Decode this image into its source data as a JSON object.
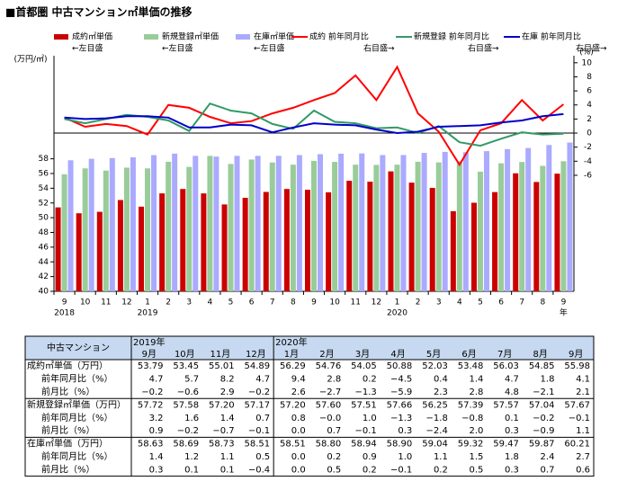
{
  "chart_data": {
    "type": "combo",
    "title": "■首都圏 中古マンション㎡単価の推移",
    "y_label": "(万円/㎡)",
    "y2_label": "(%)",
    "categories": [
      "9",
      "10",
      "11",
      "12",
      "1",
      "2",
      "3",
      "4",
      "5",
      "6",
      "7",
      "8",
      "9",
      "10",
      "11",
      "12",
      "1",
      "2",
      "3",
      "4",
      "5",
      "6",
      "7",
      "8",
      "9"
    ],
    "category_years": [
      "2018",
      null,
      null,
      null,
      "2019",
      null,
      null,
      null,
      null,
      null,
      null,
      null,
      null,
      null,
      null,
      null,
      "2020",
      null,
      null,
      null,
      null,
      null,
      null,
      null,
      null
    ],
    "x_unit": "年",
    "ylim": [
      40,
      72
    ],
    "yticks": [
      40,
      42,
      44,
      46,
      48,
      50,
      52,
      54,
      56,
      58
    ],
    "y2lim": [
      -22.5,
      11
    ],
    "y2ticks": [
      -6,
      -4,
      -2,
      0,
      2,
      4,
      6,
      8,
      10
    ],
    "y2_zero_line": true,
    "series": [
      {
        "name": "成約㎡単価",
        "note": "←左目盛",
        "type": "bar",
        "color": "#cc0000",
        "values": [
          51.4,
          50.6,
          50.8,
          52.4,
          51.5,
          53.3,
          53.9,
          53.3,
          51.8,
          52.7,
          53.5,
          53.9,
          53.79,
          53.45,
          55.01,
          54.89,
          56.29,
          54.76,
          54.05,
          50.88,
          52.03,
          53.48,
          56.03,
          54.85,
          55.98
        ]
      },
      {
        "name": "新規登録㎡単価",
        "note": "←左目盛",
        "type": "bar",
        "color": "#99cc99",
        "values": [
          55.9,
          56.7,
          56.4,
          56.8,
          56.7,
          57.6,
          56.9,
          58.4,
          57.3,
          57.9,
          57.5,
          57.2,
          57.72,
          57.58,
          57.2,
          57.17,
          57.2,
          57.6,
          57.51,
          57.66,
          56.25,
          57.39,
          57.57,
          57.04,
          57.67
        ]
      },
      {
        "name": "在庫㎡単価",
        "note": "←左目盛",
        "type": "bar",
        "color": "#aaaaff",
        "values": [
          57.8,
          58.0,
          58.1,
          58.2,
          58.5,
          58.7,
          58.4,
          58.3,
          58.4,
          58.4,
          58.4,
          58.5,
          58.63,
          58.69,
          58.73,
          58.51,
          58.51,
          58.8,
          58.94,
          58.9,
          59.04,
          59.32,
          59.47,
          59.87,
          60.21
        ]
      },
      {
        "name": "成約 前年同月比",
        "note": "右目盛→",
        "type": "line",
        "axis": "y2",
        "color": "#ff0000",
        "values": [
          2.2,
          0.9,
          1.3,
          1.0,
          -0.2,
          4.0,
          3.6,
          2.3,
          1.4,
          1.7,
          2.8,
          3.6,
          4.7,
          5.7,
          8.2,
          4.7,
          9.4,
          2.8,
          0.2,
          -4.5,
          0.4,
          1.4,
          4.7,
          1.8,
          4.1
        ]
      },
      {
        "name": "新規登録 前年同月比",
        "note": "右目盛→",
        "type": "line",
        "axis": "y2",
        "color": "#339966",
        "values": [
          2.0,
          1.4,
          2.0,
          2.6,
          2.3,
          1.8,
          0.3,
          4.2,
          3.2,
          2.8,
          1.3,
          0.6,
          3.2,
          1.6,
          1.4,
          0.7,
          0.8,
          0.0,
          1.0,
          -1.3,
          -1.8,
          -0.8,
          0.1,
          -0.2,
          -0.1
        ]
      },
      {
        "name": "在庫 前年同月比",
        "note": "右目盛→",
        "type": "line",
        "axis": "y2",
        "color": "#0000cc",
        "values": [
          2.2,
          2.0,
          2.1,
          2.4,
          2.4,
          2.2,
          0.8,
          0.8,
          1.2,
          1.1,
          0.1,
          0.8,
          1.4,
          1.2,
          1.1,
          0.5,
          0.0,
          0.2,
          0.9,
          1.0,
          1.1,
          1.5,
          1.8,
          2.4,
          2.7
        ]
      }
    ]
  },
  "table": {
    "corner": "中古マンション",
    "years": [
      {
        "label": "2019年",
        "span": 4
      },
      {
        "label": "2020年",
        "span": 9
      }
    ],
    "months": [
      "9月",
      "10月",
      "11月",
      "12月",
      "1月",
      "2月",
      "3月",
      "4月",
      "5月",
      "6月",
      "7月",
      "8月",
      "9月"
    ],
    "rows": [
      {
        "label": "成約㎡単価（万円）",
        "cells": [
          "53.79",
          "53.45",
          "55.01",
          "54.89",
          "56.29",
          "54.76",
          "54.05",
          "50.88",
          "52.03",
          "53.48",
          "56.03",
          "54.85",
          "55.98"
        ]
      },
      {
        "label": "前年同月比（%）",
        "cells": [
          "4.7",
          "5.7",
          "8.2",
          "4.7",
          "9.4",
          "2.8",
          "0.2",
          "−4.5",
          "0.4",
          "1.4",
          "4.7",
          "1.8",
          "4.1"
        ]
      },
      {
        "label": "前月比（%）",
        "cells": [
          "−0.2",
          "−0.6",
          "2.9",
          "−0.2",
          "2.6",
          "−2.7",
          "−1.3",
          "−5.9",
          "2.3",
          "2.8",
          "4.8",
          "−2.1",
          "2.1"
        ]
      },
      {
        "label": "新規登録㎡単価（万円）",
        "cells": [
          "57.72",
          "57.58",
          "57.20",
          "57.17",
          "57.20",
          "57.60",
          "57.51",
          "57.66",
          "56.25",
          "57.39",
          "57.57",
          "57.04",
          "57.67"
        ]
      },
      {
        "label": "前年同月比（%）",
        "cells": [
          "3.2",
          "1.6",
          "1.4",
          "0.7",
          "0.8",
          "−0.0",
          "1.0",
          "−1.3",
          "−1.8",
          "−0.8",
          "0.1",
          "−0.2",
          "−0.1"
        ]
      },
      {
        "label": "前月比（%）",
        "cells": [
          "0.9",
          "−0.2",
          "−0.7",
          "−0.1",
          "0.0",
          "0.7",
          "−0.1",
          "0.3",
          "−2.4",
          "2.0",
          "0.3",
          "−0.9",
          "1.1"
        ]
      },
      {
        "label": "在庫㎡単価（万円）",
        "cells": [
          "58.63",
          "58.69",
          "58.73",
          "58.51",
          "58.51",
          "58.80",
          "58.94",
          "58.90",
          "59.04",
          "59.32",
          "59.47",
          "59.87",
          "60.21"
        ]
      },
      {
        "label": "前年同月比（%）",
        "cells": [
          "1.4",
          "1.2",
          "1.1",
          "0.5",
          "0.0",
          "0.2",
          "0.9",
          "1.0",
          "1.1",
          "1.5",
          "1.8",
          "2.4",
          "2.7"
        ]
      },
      {
        "label": "前月比（%）",
        "cells": [
          "0.3",
          "0.1",
          "0.1",
          "−0.4",
          "0.0",
          "0.5",
          "0.2",
          "−0.1",
          "0.2",
          "0.5",
          "0.3",
          "0.7",
          "0.6"
        ]
      }
    ]
  }
}
